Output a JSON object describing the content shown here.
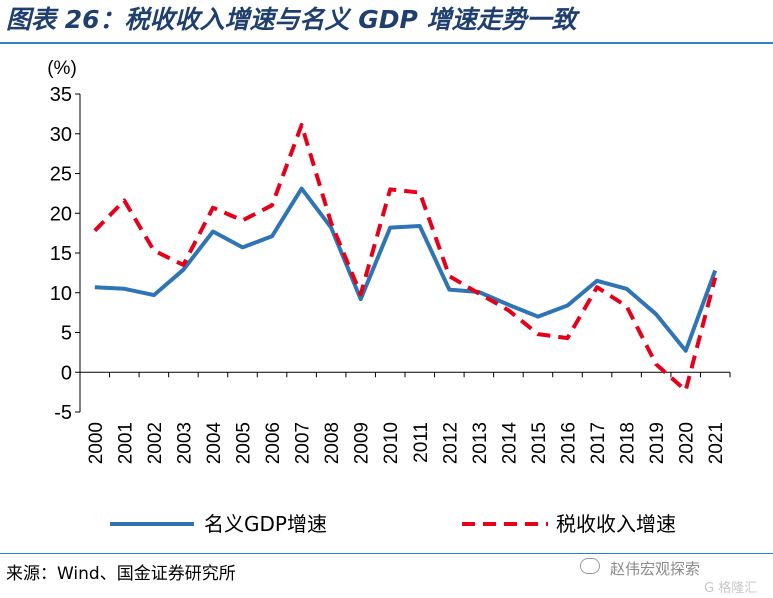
{
  "title": "图表 26：税收收入增速与名义 GDP 增速走势一致",
  "source": "来源：Wind、国金证券研究所",
  "watermark": {
    "text": "赵伟宏观探索",
    "sub": "G 格隆汇",
    "icon": "wechat-icon"
  },
  "colors": {
    "title": "#1f3f6e",
    "rule": "#2f7fc7",
    "gdp": "#2f75b5",
    "tax": "#e6001a"
  },
  "chart_data": {
    "type": "line",
    "unit_label": "(%)",
    "categories": [
      "2000",
      "2001",
      "2002",
      "2003",
      "2004",
      "2005",
      "2006",
      "2007",
      "2008",
      "2009",
      "2010",
      "2011",
      "2012",
      "2013",
      "2014",
      "2015",
      "2016",
      "2017",
      "2018",
      "2019",
      "2020",
      "2021"
    ],
    "ylim": [
      -5,
      35
    ],
    "yticks": [
      35,
      30,
      25,
      20,
      15,
      10,
      5,
      0,
      -5
    ],
    "series": [
      {
        "name": "名义GDP增速",
        "style": "solid",
        "color": "#2f75b5",
        "values": [
          10.7,
          10.5,
          9.7,
          12.9,
          17.7,
          15.7,
          17.1,
          23.1,
          18.2,
          9.2,
          18.2,
          18.4,
          10.4,
          10.1,
          8.5,
          7.0,
          8.4,
          11.5,
          10.5,
          7.3,
          2.7,
          12.8
        ]
      },
      {
        "name": "税收收入增速",
        "style": "dashed",
        "color": "#e6001a",
        "values": [
          17.8,
          21.6,
          15.3,
          13.5,
          20.7,
          19.1,
          21.0,
          31.1,
          18.8,
          9.8,
          23.0,
          22.6,
          12.1,
          9.9,
          7.8,
          4.8,
          4.3,
          10.7,
          8.3,
          1.0,
          -2.3,
          11.9
        ]
      }
    ],
    "legend_position": "bottom",
    "grid": false
  }
}
